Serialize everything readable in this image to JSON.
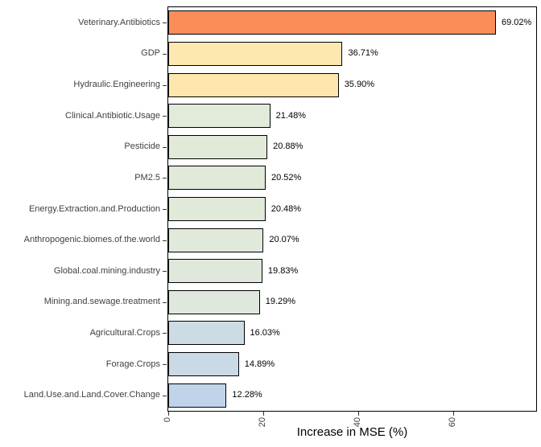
{
  "chart_data": {
    "type": "bar",
    "orientation": "horizontal",
    "title": "",
    "xlabel": "Increase in MSE (%)",
    "ylabel": "",
    "xlim": [
      0,
      77.5
    ],
    "x_ticks": [
      0,
      20,
      40,
      60
    ],
    "x_tick_labels": [
      "0",
      "20",
      "40",
      "60"
    ],
    "grid": false,
    "legend": false,
    "categories": [
      "Veterinary.Antibiotics",
      "GDP",
      "Hydraulic.Engineering",
      "Clinical.Antibiotic.Usage",
      "Pesticide",
      "PM2.5",
      "Energy.Extraction.and.Production",
      "Anthropogenic.biomes.of.the.world",
      "Global.coal.mining.industry",
      "Mining.and.sewage.treatment",
      "Agricultural.Crops",
      "Forage.Crops",
      "Land.Use.and.Land.Cover.Change"
    ],
    "values": [
      69.02,
      36.71,
      35.9,
      21.48,
      20.88,
      20.52,
      20.48,
      20.07,
      19.83,
      19.29,
      16.03,
      14.89,
      12.28
    ],
    "value_labels": [
      "69.02%",
      "36.71%",
      "35.90%",
      "21.48%",
      "20.88%",
      "20.52%",
      "20.48%",
      "20.07%",
      "19.83%",
      "19.29%",
      "16.03%",
      "14.89%",
      "12.28%"
    ],
    "bar_colors": [
      "#FB8D59",
      "#FEE8B1",
      "#FEE7AE",
      "#E2EAD9",
      "#E1E9D9",
      "#E1E9D9",
      "#E1E9D9",
      "#E0E9DA",
      "#E0E8DB",
      "#DFE8DC",
      "#CCDCE4",
      "#C9DAE6",
      "#BFD4E9"
    ],
    "bar_border_color": "#000000",
    "panel_border_color": "#000000",
    "axis_text_color": "#404040",
    "value_label_color": "#000000"
  }
}
